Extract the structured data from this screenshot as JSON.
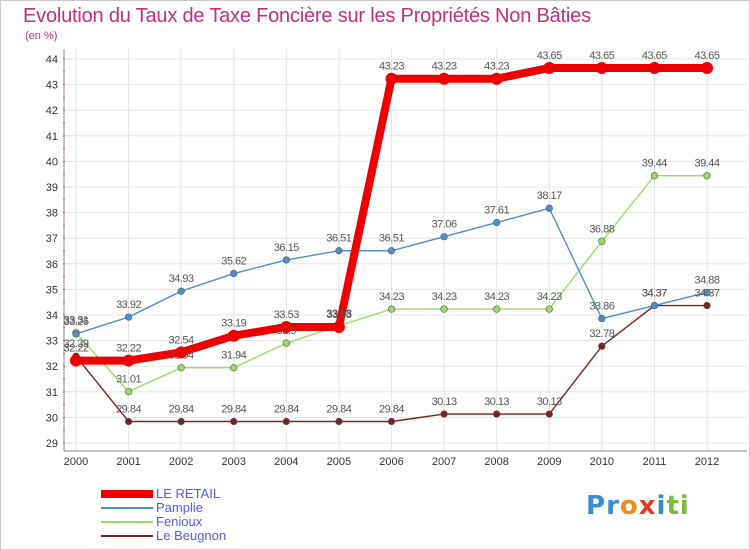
{
  "chart_data": {
    "type": "line",
    "title": "Evolution du Taux de Taxe Foncière sur les Propriétés Non Bâties",
    "ylabel": "(en %)",
    "xlabel": "",
    "ylim": [
      29,
      44
    ],
    "yticks": [
      29,
      30,
      31,
      32,
      33,
      34,
      35,
      36,
      37,
      38,
      39,
      40,
      41,
      42,
      43,
      44
    ],
    "categories": [
      "2000",
      "2001",
      "2002",
      "2003",
      "2004",
      "2005",
      "2006",
      "2007",
      "2008",
      "2009",
      "2010",
      "2011",
      "2012"
    ],
    "grid": true,
    "legend_position": "bottom-left",
    "series": [
      {
        "name": "LE RETAIL",
        "color": "#ee0000",
        "values": [
          32.22,
          32.22,
          32.54,
          33.19,
          33.53,
          33.53,
          43.23,
          43.23,
          43.23,
          43.65,
          43.65,
          43.65,
          43.65
        ],
        "labels": [
          "32.22",
          "32.22",
          "32.54",
          "33.19",
          "33.53",
          "33.53",
          "43.23",
          "43.23",
          "43.23",
          "43.65",
          "43.65",
          "43.65",
          "43.65"
        ]
      },
      {
        "name": "Pamplie",
        "color": "#4f8fc8",
        "values": [
          33.26,
          33.92,
          34.93,
          35.62,
          36.15,
          36.51,
          36.51,
          37.06,
          37.61,
          38.17,
          33.86,
          34.37,
          34.88
        ],
        "labels": [
          "33.26",
          "33.92",
          "34.93",
          "35.62",
          "36.15",
          "36.51",
          "36.51",
          "37.06",
          "37.61",
          "38.17",
          "33.86",
          "34.37",
          "34.88"
        ]
      },
      {
        "name": "Fenioux",
        "color": "#99dd66",
        "values": [
          33.31,
          31.01,
          31.94,
          31.94,
          32.9,
          33.58,
          34.23,
          34.23,
          34.23,
          34.23,
          36.88,
          39.44,
          39.44
        ],
        "labels": [
          "33.31",
          "31.01",
          "31.94",
          "31.94",
          "32.9",
          "33.58",
          "34.23",
          "34.23",
          "34.23",
          "34.23",
          "36.88",
          "39.44",
          "39.44"
        ]
      },
      {
        "name": "Le Beugnon",
        "color": "#7a2222",
        "values": [
          32.39,
          29.84,
          29.84,
          29.84,
          29.84,
          29.84,
          29.84,
          30.13,
          30.13,
          30.13,
          32.78,
          34.37,
          34.37
        ],
        "labels": [
          "32.39",
          "29.84",
          "29.84",
          "29.84",
          "29.84",
          "29.84",
          "29.84",
          "30.13",
          "30.13",
          "30.13",
          "32.78",
          "34.37",
          "34.37"
        ]
      }
    ]
  },
  "brand": {
    "letters": [
      "P",
      "r",
      "o",
      "x",
      "i",
      "t",
      "i"
    ],
    "colors": [
      "#3a8ad4",
      "#3a8ad4",
      "#f08a1e",
      "#e03a2a",
      "#3a8ad4",
      "#7dbb3c",
      "#7dbb3c"
    ]
  }
}
